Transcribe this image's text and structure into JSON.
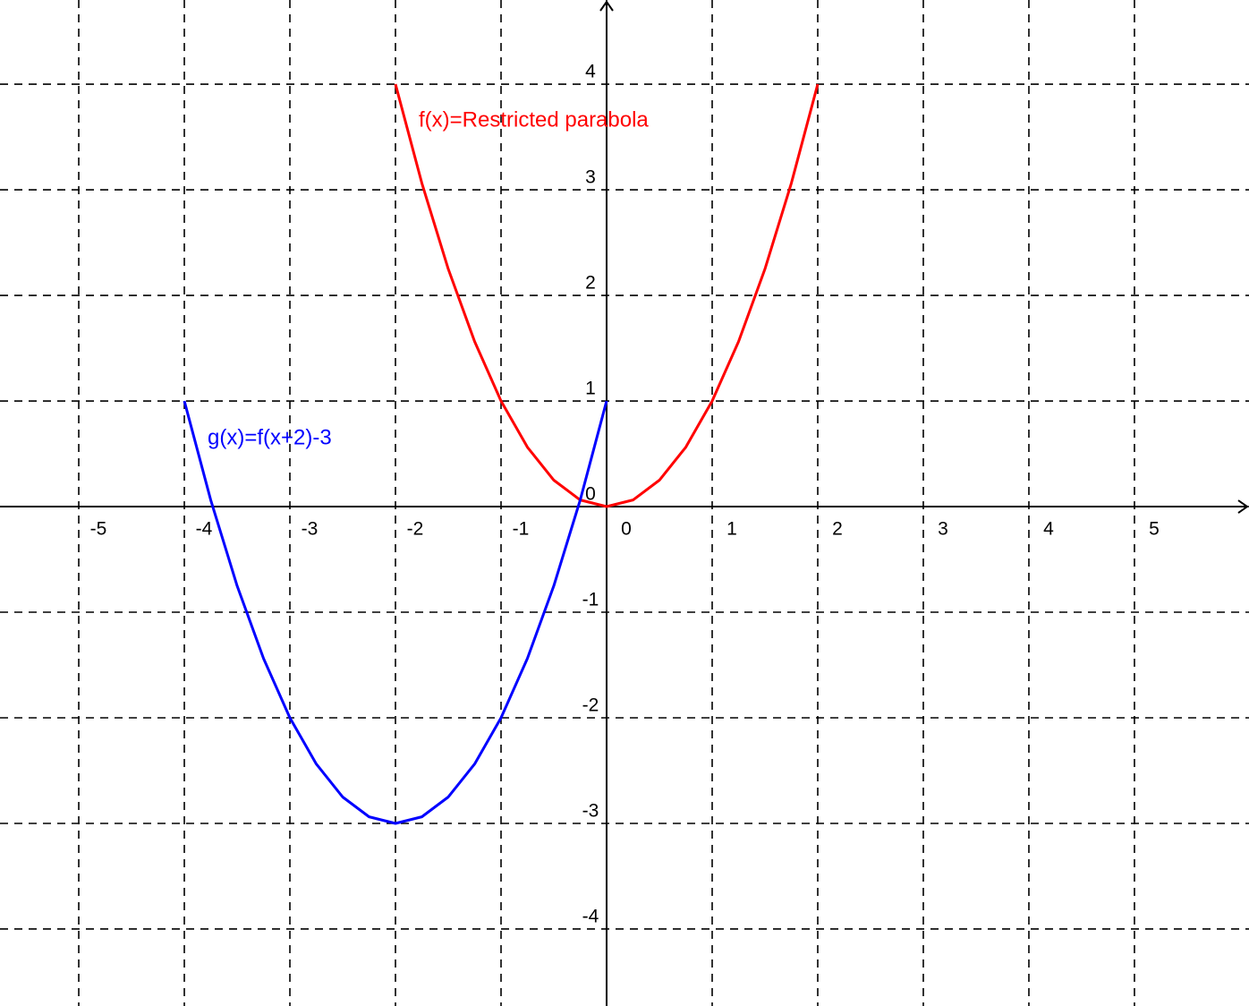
{
  "chart_data": {
    "type": "line",
    "xlim": [
      -5.746,
      6.085
    ],
    "ylim": [
      -4.729,
      4.797
    ],
    "xticks": [
      -5,
      -4,
      -3,
      -2,
      -1,
      0,
      1,
      2,
      3,
      4,
      5
    ],
    "yticks": [
      -4,
      -3,
      -2,
      -1,
      0,
      1,
      2,
      3,
      4
    ],
    "grid": true,
    "series": [
      {
        "name": "f(x)=Restricted parabola",
        "color": "#ff0000",
        "x": [
          -2,
          -1.75,
          -1.5,
          -1.25,
          -1,
          -0.75,
          -0.5,
          -0.25,
          0,
          0.25,
          0.5,
          0.75,
          1,
          1.25,
          1.5,
          1.75,
          2
        ],
        "values": [
          4,
          3.0625,
          2.25,
          1.5625,
          1,
          0.5625,
          0.25,
          0.0625,
          0,
          0.0625,
          0.25,
          0.5625,
          1,
          1.5625,
          2.25,
          3.0625,
          4
        ]
      },
      {
        "name": "g(x)=f(x+2)-3",
        "color": "#0000ff",
        "x": [
          -4,
          -3.75,
          -3.5,
          -3.25,
          -3,
          -2.75,
          -2.5,
          -2.25,
          -2,
          -1.75,
          -1.5,
          -1.25,
          -1,
          -0.75,
          -0.5,
          -0.25,
          0
        ],
        "values": [
          1,
          0.0625,
          -0.75,
          -1.4375,
          -2,
          -2.4375,
          -2.75,
          -2.9375,
          -3,
          -2.9375,
          -2.75,
          -2.4375,
          -2,
          -1.4375,
          -0.75,
          0.0625,
          1
        ]
      }
    ]
  }
}
